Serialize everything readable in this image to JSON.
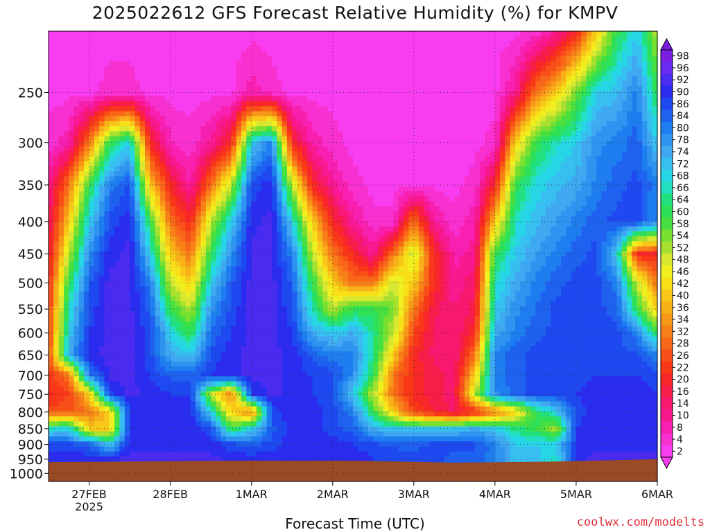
{
  "chart_data": {
    "type": "heatmap",
    "title": "2025022612 GFS Forecast Relative Humidity (%) for KMPV",
    "xlabel": "Forecast Time (UTC)",
    "ylabel": "",
    "credit": "coolwx.com/modelts",
    "x_ticks": [
      {
        "label": "27FEB",
        "sub": "2025",
        "hours_from_init": 12
      },
      {
        "label": "28FEB",
        "sub": "",
        "hours_from_init": 36
      },
      {
        "label": "1MAR",
        "sub": "",
        "hours_from_init": 60
      },
      {
        "label": "2MAR",
        "sub": "",
        "hours_from_init": 84
      },
      {
        "label": "3MAR",
        "sub": "",
        "hours_from_init": 108
      },
      {
        "label": "4MAR",
        "sub": "",
        "hours_from_init": 132
      },
      {
        "label": "5MAR",
        "sub": "",
        "hours_from_init": 156
      },
      {
        "label": "6MAR",
        "sub": "",
        "hours_from_init": 180
      }
    ],
    "xlim_hours": [
      0,
      180
    ],
    "y_ticks": [
      250,
      300,
      350,
      400,
      450,
      500,
      550,
      600,
      650,
      700,
      750,
      800,
      850,
      900,
      950,
      1000
    ],
    "ylim_mb": [
      200,
      1030
    ],
    "y_scale": "log",
    "grid": true,
    "colorbar": {
      "labels": [
        "98",
        "96",
        "92",
        "90",
        "86",
        "84",
        "80",
        "78",
        "74",
        "72",
        "68",
        "66",
        "64",
        "60",
        "58",
        "54",
        "52",
        "48",
        "46",
        "42",
        "40",
        "36",
        "34",
        "32",
        "28",
        "26",
        "22",
        "20",
        "16",
        "14",
        "10",
        "8",
        "4",
        "2"
      ],
      "colors": [
        "#7a1fe0",
        "#6a2cf0",
        "#4a2cf0",
        "#2a2cf0",
        "#1e48f0",
        "#1f62f0",
        "#1e7ef0",
        "#2f93f0",
        "#3fa8f0",
        "#36bff0",
        "#27d6e6",
        "#22e0c0",
        "#22e080",
        "#2ee058",
        "#48e040",
        "#78e030",
        "#a8e030",
        "#d8e830",
        "#f0f020",
        "#f8e018",
        "#f8c818",
        "#f8b018",
        "#f89818",
        "#f88018",
        "#f86818",
        "#f85018",
        "#f83818",
        "#f82828",
        "#f81c48",
        "#f81870",
        "#f81890",
        "#f820b0",
        "#f830d0",
        "#f83cf0"
      ]
    },
    "rh_field": {
      "time_hours": [
        0,
        6,
        12,
        18,
        24,
        30,
        36,
        42,
        48,
        54,
        60,
        66,
        72,
        78,
        84,
        90,
        96,
        102,
        108,
        114,
        120,
        126,
        132,
        138,
        144,
        150,
        156,
        162,
        168,
        174,
        180
      ],
      "levels_mb": [
        200,
        250,
        300,
        350,
        400,
        450,
        500,
        550,
        600,
        650,
        700,
        750,
        800,
        850,
        900,
        950
      ],
      "rh_rows_by_level": [
        [
          2,
          2,
          2,
          2,
          2,
          2,
          2,
          2,
          2,
          2,
          2,
          2,
          2,
          2,
          2,
          2,
          2,
          2,
          2,
          2,
          2,
          2,
          2,
          2,
          4,
          10,
          20,
          40,
          60,
          70,
          50
        ],
        [
          2,
          2,
          2,
          4,
          4,
          2,
          2,
          2,
          2,
          2,
          8,
          4,
          2,
          2,
          2,
          2,
          2,
          2,
          2,
          2,
          2,
          2,
          2,
          10,
          30,
          40,
          55,
          70,
          72,
          80,
          60
        ],
        [
          4,
          8,
          30,
          60,
          70,
          20,
          6,
          4,
          10,
          20,
          70,
          80,
          20,
          8,
          4,
          2,
          2,
          2,
          2,
          2,
          2,
          2,
          4,
          40,
          60,
          66,
          70,
          78,
          80,
          84,
          70
        ],
        [
          10,
          30,
          60,
          80,
          86,
          40,
          20,
          8,
          30,
          50,
          86,
          90,
          50,
          20,
          10,
          4,
          2,
          2,
          2,
          2,
          2,
          4,
          20,
          60,
          68,
          72,
          74,
          80,
          84,
          86,
          80
        ],
        [
          14,
          40,
          70,
          86,
          90,
          60,
          30,
          20,
          50,
          70,
          90,
          92,
          70,
          40,
          20,
          10,
          4,
          4,
          30,
          10,
          4,
          8,
          40,
          66,
          72,
          76,
          80,
          84,
          86,
          86,
          78
        ],
        [
          16,
          50,
          78,
          90,
          92,
          70,
          40,
          30,
          60,
          78,
          92,
          92,
          80,
          50,
          30,
          20,
          10,
          30,
          50,
          20,
          8,
          10,
          60,
          70,
          76,
          80,
          84,
          86,
          70,
          20,
          20
        ],
        [
          20,
          60,
          84,
          92,
          92,
          80,
          50,
          40,
          70,
          84,
          92,
          92,
          84,
          60,
          40,
          30,
          30,
          50,
          40,
          20,
          10,
          14,
          66,
          74,
          80,
          84,
          86,
          86,
          80,
          50,
          30
        ],
        [
          22,
          66,
          86,
          92,
          92,
          84,
          60,
          50,
          78,
          86,
          92,
          92,
          86,
          66,
          50,
          60,
          60,
          54,
          30,
          16,
          12,
          16,
          70,
          78,
          82,
          86,
          86,
          86,
          84,
          60,
          40
        ],
        [
          24,
          70,
          88,
          92,
          92,
          86,
          70,
          60,
          82,
          88,
          92,
          92,
          88,
          74,
          70,
          74,
          64,
          50,
          24,
          14,
          12,
          20,
          74,
          80,
          84,
          86,
          86,
          86,
          86,
          80,
          60
        ],
        [
          24,
          74,
          90,
          92,
          92,
          86,
          74,
          70,
          86,
          90,
          92,
          92,
          90,
          84,
          80,
          80,
          64,
          40,
          20,
          14,
          12,
          30,
          80,
          84,
          86,
          86,
          86,
          88,
          86,
          86,
          80
        ],
        [
          22,
          30,
          80,
          92,
          92,
          88,
          84,
          84,
          88,
          90,
          92,
          92,
          90,
          88,
          86,
          78,
          60,
          30,
          20,
          16,
          14,
          40,
          80,
          84,
          86,
          86,
          86,
          88,
          88,
          88,
          86
        ],
        [
          20,
          24,
          40,
          86,
          92,
          90,
          88,
          88,
          50,
          30,
          88,
          92,
          90,
          88,
          86,
          70,
          50,
          30,
          20,
          16,
          14,
          50,
          78,
          84,
          86,
          86,
          88,
          90,
          90,
          90,
          88
        ],
        [
          26,
          26,
          30,
          40,
          88,
          90,
          90,
          90,
          70,
          40,
          30,
          86,
          90,
          90,
          86,
          80,
          60,
          40,
          24,
          18,
          14,
          20,
          30,
          40,
          60,
          70,
          86,
          90,
          90,
          90,
          90
        ],
        [
          66,
          70,
          40,
          40,
          90,
          90,
          90,
          90,
          86,
          60,
          70,
          84,
          90,
          90,
          86,
          84,
          74,
          70,
          70,
          70,
          70,
          74,
          70,
          64,
          60,
          50,
          88,
          90,
          90,
          90,
          90
        ],
        [
          86,
          86,
          84,
          70,
          90,
          90,
          90,
          90,
          90,
          86,
          84,
          86,
          90,
          90,
          90,
          88,
          86,
          84,
          84,
          86,
          86,
          86,
          80,
          70,
          70,
          70,
          88,
          90,
          90,
          90,
          90
        ],
        [
          90,
          90,
          90,
          90,
          92,
          92,
          92,
          92,
          92,
          90,
          90,
          90,
          90,
          90,
          90,
          90,
          88,
          88,
          86,
          86,
          84,
          84,
          80,
          72,
          72,
          66,
          90,
          92,
          92,
          92,
          92
        ]
      ]
    }
  }
}
